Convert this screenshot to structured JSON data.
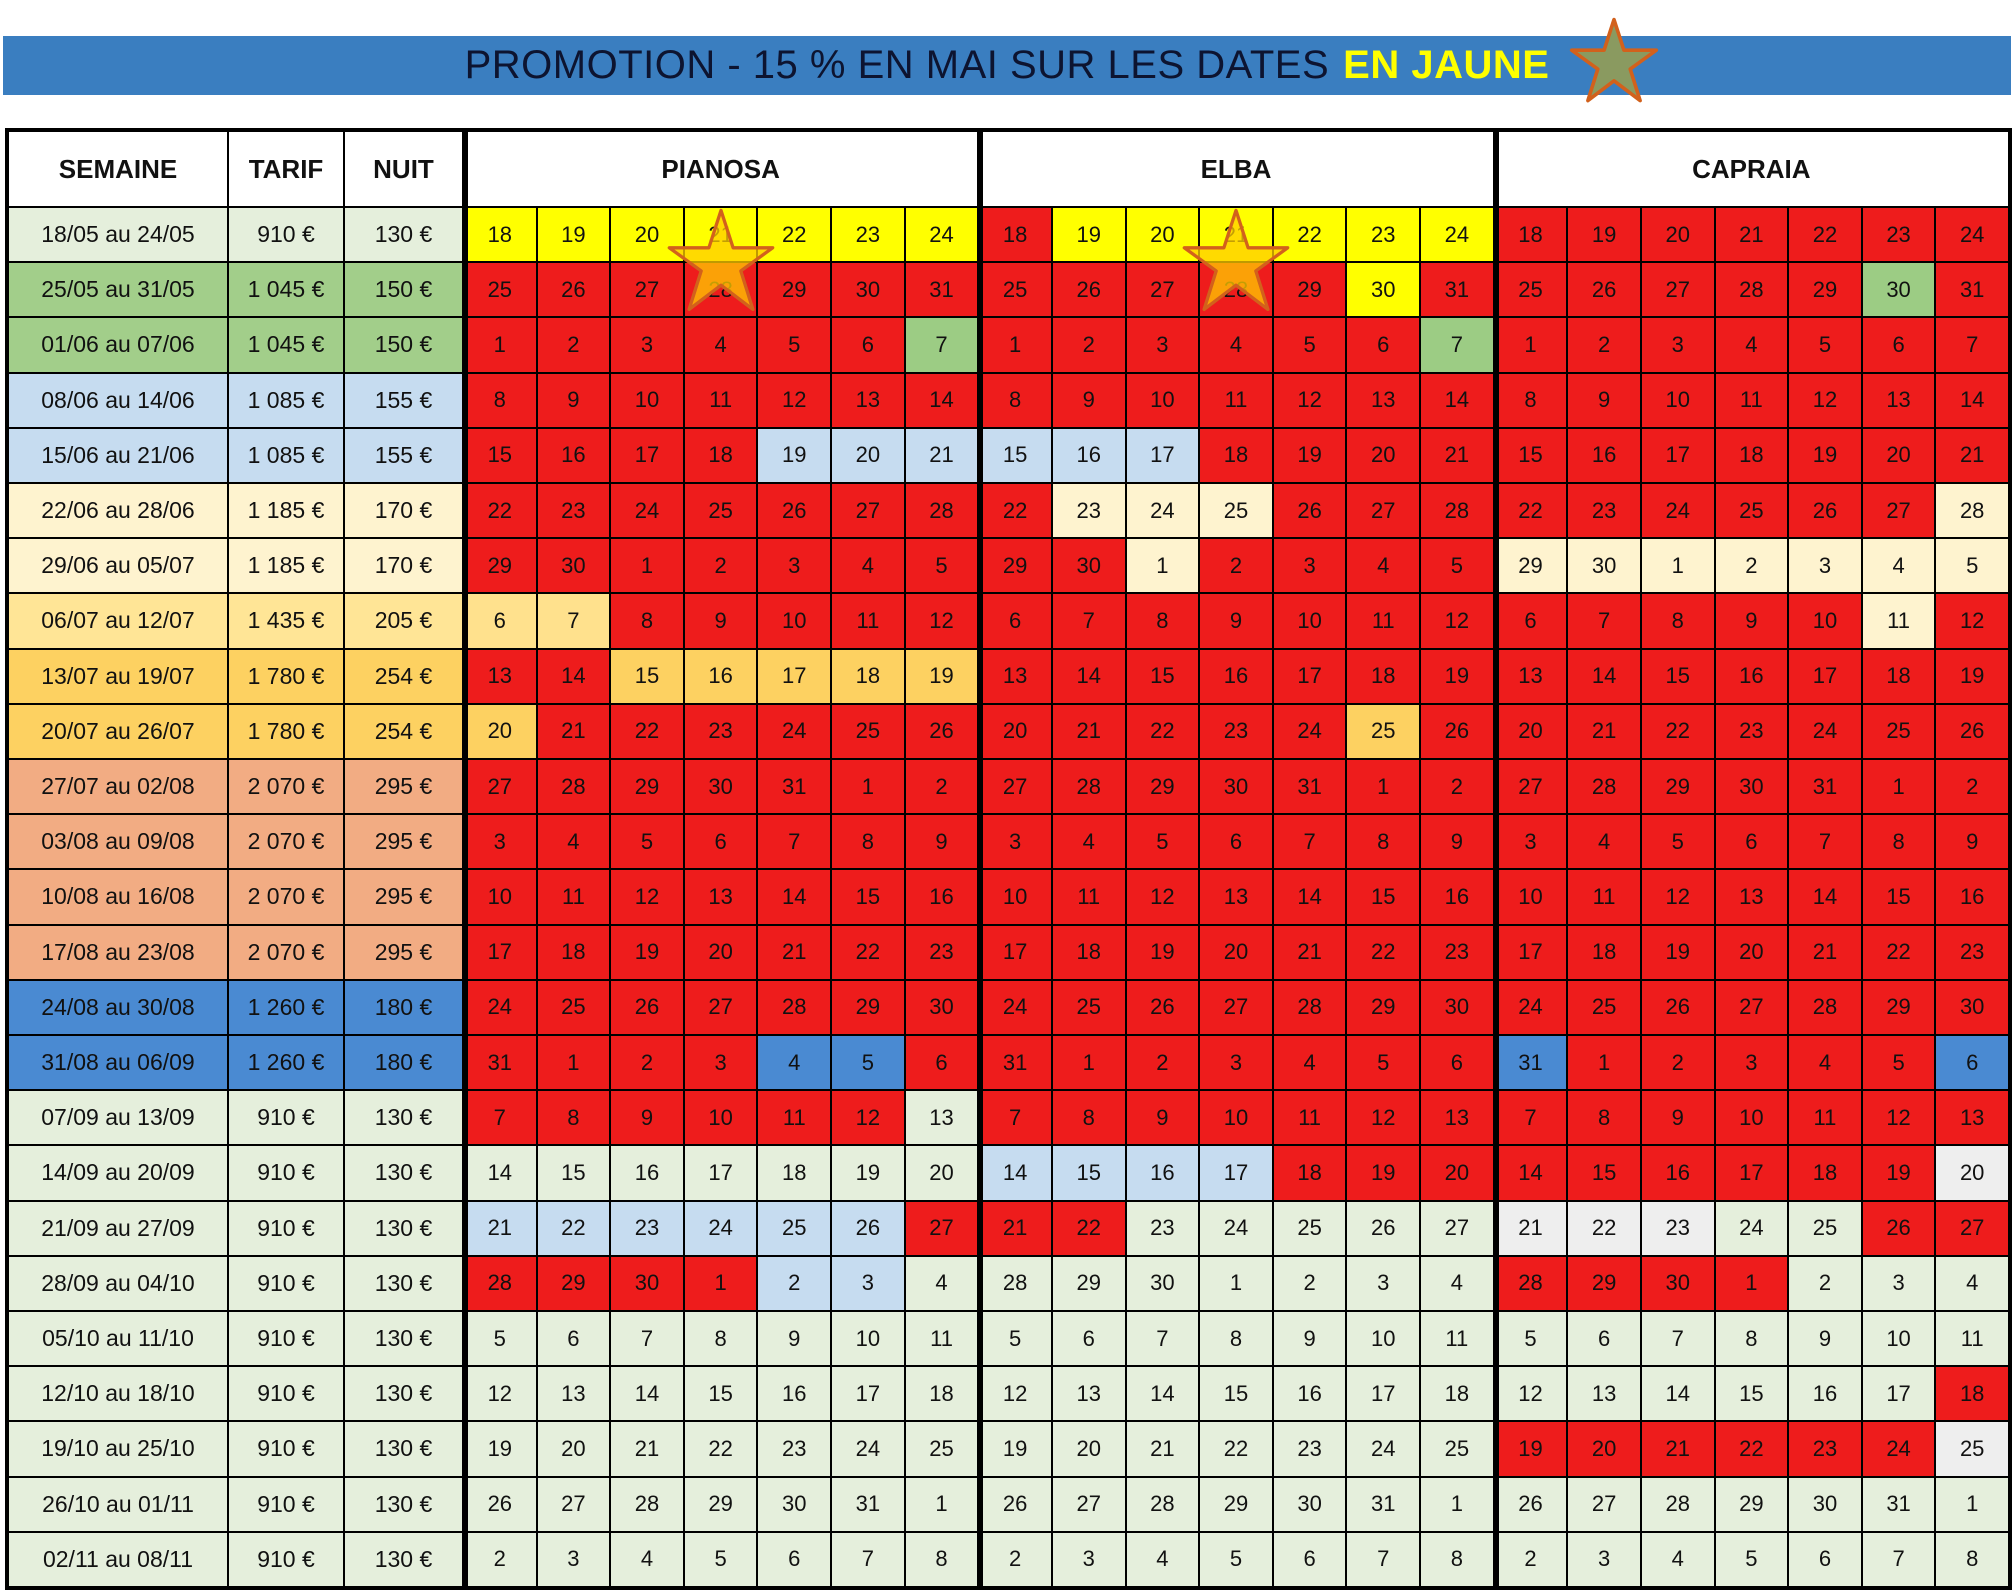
{
  "banner": {
    "text": "PROMOTION - 15 % EN MAI SUR LES DATES",
    "highlight": "EN JAUNE",
    "star": "star-icon"
  },
  "headers": {
    "semaine": "SEMAINE",
    "tarif": "TARIF",
    "nuit": "NUIT",
    "groups": [
      "PIANOSA",
      "ELBA",
      "CAPRAIA"
    ]
  },
  "colors": {
    "R": "#ee1c1c",
    "Y": "#ffff00",
    "G": "#9ccc84",
    "L": "#c6dcf0",
    "C": "#fef3cf",
    "O": "#ffe18d",
    "A": "#fdd161",
    "B": "#4a8ad2",
    "M": "#e5efdc",
    "W": "#eeeeee",
    "c1": "#e5efdc",
    "c2": "#a2ce8a",
    "c3": "#c6dcf0",
    "c4": "#fef3cf",
    "c5": "#ffe596",
    "c6": "#fdd161",
    "c7": "#f2ac83",
    "c8": "#4a8ad2"
  },
  "weeks": [
    {
      "label": "18/05 au 24/05",
      "tarif": "910 €",
      "nuit": "130 €",
      "color": "c1",
      "p": "YYYYYYY",
      "e": "RYYYYYY",
      "c": "RRRRRRR"
    },
    {
      "label": "25/05 au 31/05",
      "tarif": "1 045 €",
      "nuit": "150 €",
      "color": "c2",
      "p": "RRRRRRR",
      "e": "RRRRRYR",
      "c": "RRRRRGR"
    },
    {
      "label": "01/06 au 07/06",
      "tarif": "1 045 €",
      "nuit": "150 €",
      "color": "c2",
      "p": "RRRRRRG",
      "e": "RRRRRRG",
      "c": "RRRRRRR"
    },
    {
      "label": "08/06 au 14/06",
      "tarif": "1 085 €",
      "nuit": "155 €",
      "color": "c3",
      "p": "RRRRRRR",
      "e": "RRRRRRR",
      "c": "RRRRRRR"
    },
    {
      "label": "15/06 au 21/06",
      "tarif": "1 085 €",
      "nuit": "155 €",
      "color": "c3",
      "p": "RRRRLLL",
      "e": "LLLRRRR",
      "c": "RRRRRRR"
    },
    {
      "label": "22/06 au 28/06",
      "tarif": "1 185 €",
      "nuit": "170 €",
      "color": "c4",
      "p": "RRRRRRR",
      "e": "RCCCRRR",
      "c": "RRRRRRC"
    },
    {
      "label": "29/06 au 05/07",
      "tarif": "1 185 €",
      "nuit": "170 €",
      "color": "c4",
      "p": "RRRRRRR",
      "e": "RRCRRRR",
      "c": "CCCCCCC"
    },
    {
      "label": "06/07 au 12/07",
      "tarif": "1 435 €",
      "nuit": "205 €",
      "color": "c5",
      "p": "OORRRRR",
      "e": "RRRRRRR",
      "c": "RRRRRCR"
    },
    {
      "label": "13/07 au 19/07",
      "tarif": "1 780 €",
      "nuit": "254 €",
      "color": "c6",
      "p": "RRAAAAA",
      "e": "RRRRRRR",
      "c": "RRRRRRR"
    },
    {
      "label": "20/07 au 26/07",
      "tarif": "1 780 €",
      "nuit": "254 €",
      "color": "c6",
      "p": "ARRRRRR",
      "e": "RRRRRAR",
      "c": "RRRRRRR"
    },
    {
      "label": "27/07 au 02/08",
      "tarif": "2 070 €",
      "nuit": "295 €",
      "color": "c7",
      "p": "RRRRRRR",
      "e": "RRRRRRR",
      "c": "RRRRRRR"
    },
    {
      "label": "03/08 au 09/08",
      "tarif": "2 070 €",
      "nuit": "295 €",
      "color": "c7",
      "p": "RRRRRRR",
      "e": "RRRRRRR",
      "c": "RRRRRRR"
    },
    {
      "label": "10/08 au 16/08",
      "tarif": "2 070 €",
      "nuit": "295 €",
      "color": "c7",
      "p": "RRRRRRR",
      "e": "RRRRRRR",
      "c": "RRRRRRR"
    },
    {
      "label": "17/08 au 23/08",
      "tarif": "2 070 €",
      "nuit": "295 €",
      "color": "c7",
      "p": "RRRRRRR",
      "e": "RRRRRRR",
      "c": "RRRRRRR"
    },
    {
      "label": "24/08 au 30/08",
      "tarif": "1 260 €",
      "nuit": "180 €",
      "color": "c8",
      "p": "RRRRRRR",
      "e": "RRRRRRR",
      "c": "RRRRRRR"
    },
    {
      "label": "31/08 au 06/09",
      "tarif": "1 260 €",
      "nuit": "180 €",
      "color": "c8",
      "p": "RRRRBBR",
      "e": "RRRRRRR",
      "c": "BRRRRRB"
    },
    {
      "label": "07/09 au 13/09",
      "tarif": "910 €",
      "nuit": "130 €",
      "color": "c1",
      "p": "RRRRRRM",
      "e": "RRRRRRR",
      "c": "RRRRRRR"
    },
    {
      "label": "14/09 au 20/09",
      "tarif": "910 €",
      "nuit": "130 €",
      "color": "c1",
      "p": "MMMMMMM",
      "e": "LLLLRRR",
      "c": "RRRRRRW"
    },
    {
      "label": "21/09 au 27/09",
      "tarif": "910 €",
      "nuit": "130 €",
      "color": "c1",
      "p": "LLLLLLR",
      "e": "RRMMMMM",
      "c": "WWWMMRR"
    },
    {
      "label": "28/09 au 04/10",
      "tarif": "910 €",
      "nuit": "130 €",
      "color": "c1",
      "p": "RRRRLLM",
      "e": "MMMMMMM",
      "c": "RRRRMMM"
    },
    {
      "label": "05/10 au 11/10",
      "tarif": "910 €",
      "nuit": "130 €",
      "color": "c1",
      "p": "MMMMMMM",
      "e": "MMMMMMM",
      "c": "MMMMMMM"
    },
    {
      "label": "12/10 au 18/10",
      "tarif": "910 €",
      "nuit": "130 €",
      "color": "c1",
      "p": "MMMMMMM",
      "e": "MMMMMMM",
      "c": "MMMMMMR"
    },
    {
      "label": "19/10 au 25/10",
      "tarif": "910 €",
      "nuit": "130 €",
      "color": "c1",
      "p": "MMMMMMM",
      "e": "MMMMMMM",
      "c": "RRRRRRW"
    },
    {
      "label": "26/10 au 01/11",
      "tarif": "910 €",
      "nuit": "130 €",
      "color": "c1",
      "p": "MMMMMMM",
      "e": "MMMMMMM",
      "c": "MMMMMMM"
    },
    {
      "label": "02/11 au 08/11",
      "tarif": "910 €",
      "nuit": "130 €",
      "color": "c1",
      "p": "MMMMMMM",
      "e": "MMMMMMM",
      "c": "MMMMMMM"
    }
  ],
  "days": [
    [
      "18",
      "19",
      "20",
      "21",
      "22",
      "23",
      "24"
    ],
    [
      "25",
      "26",
      "27",
      "28",
      "29",
      "30",
      "31"
    ],
    [
      "1",
      "2",
      "3",
      "4",
      "5",
      "6",
      "7"
    ],
    [
      "8",
      "9",
      "10",
      "11",
      "12",
      "13",
      "14"
    ],
    [
      "15",
      "16",
      "17",
      "18",
      "19",
      "20",
      "21"
    ],
    [
      "22",
      "23",
      "24",
      "25",
      "26",
      "27",
      "28"
    ],
    [
      "29",
      "30",
      "1",
      "2",
      "3",
      "4",
      "5"
    ],
    [
      "6",
      "7",
      "8",
      "9",
      "10",
      "11",
      "12"
    ],
    [
      "13",
      "14",
      "15",
      "16",
      "17",
      "18",
      "19"
    ],
    [
      "20",
      "21",
      "22",
      "23",
      "24",
      "25",
      "26"
    ],
    [
      "27",
      "28",
      "29",
      "30",
      "31",
      "1",
      "2"
    ],
    [
      "3",
      "4",
      "5",
      "6",
      "7",
      "8",
      "9"
    ],
    [
      "10",
      "11",
      "12",
      "13",
      "14",
      "15",
      "16"
    ],
    [
      "17",
      "18",
      "19",
      "20",
      "21",
      "22",
      "23"
    ],
    [
      "24",
      "25",
      "26",
      "27",
      "28",
      "29",
      "30"
    ],
    [
      "31",
      "1",
      "2",
      "3",
      "4",
      "5",
      "6"
    ],
    [
      "7",
      "8",
      "9",
      "10",
      "11",
      "12",
      "13"
    ],
    [
      "14",
      "15",
      "16",
      "17",
      "18",
      "19",
      "20"
    ],
    [
      "21",
      "22",
      "23",
      "24",
      "25",
      "26",
      "27"
    ],
    [
      "28",
      "29",
      "30",
      "1",
      "2",
      "3",
      "4"
    ],
    [
      "5",
      "6",
      "7",
      "8",
      "9",
      "10",
      "11"
    ],
    [
      "12",
      "13",
      "14",
      "15",
      "16",
      "17",
      "18"
    ],
    [
      "19",
      "20",
      "21",
      "22",
      "23",
      "24",
      "25"
    ],
    [
      "26",
      "27",
      "28",
      "29",
      "30",
      "31",
      "1"
    ],
    [
      "2",
      "3",
      "4",
      "5",
      "6",
      "7",
      "8"
    ]
  ],
  "promo_markers": [
    {
      "group": "PIANOSA",
      "week": "18/05 au 24/05",
      "day": "21",
      "icon": "star-icon"
    },
    {
      "group": "ELBA",
      "week": "18/05 au 24/05",
      "day": "21",
      "icon": "star-icon"
    }
  ]
}
